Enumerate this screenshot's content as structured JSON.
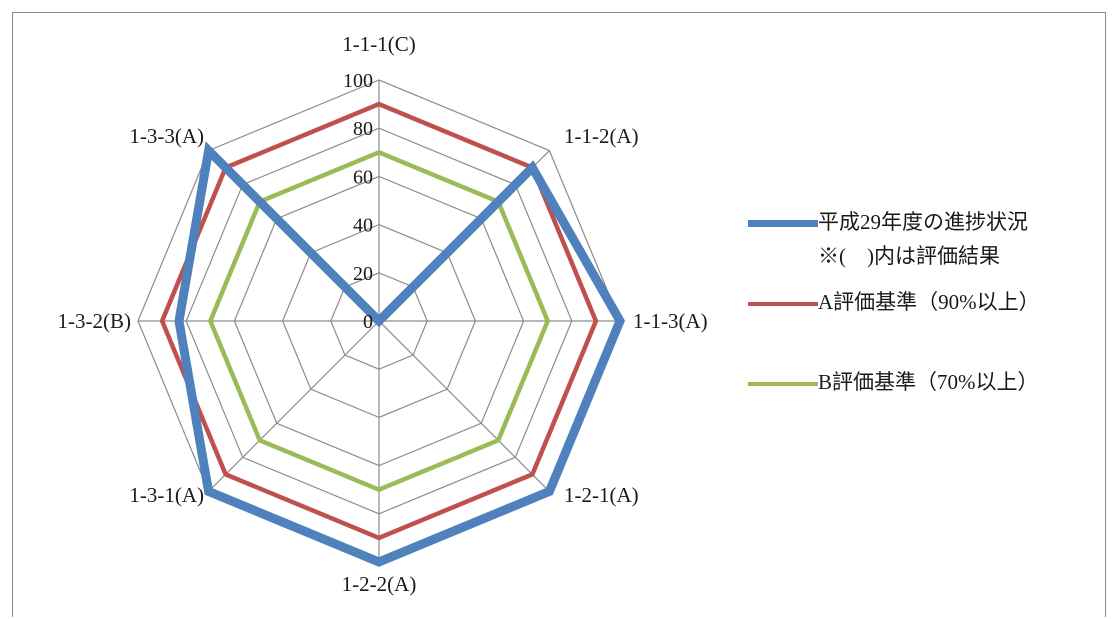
{
  "chart_data": {
    "type": "radar",
    "title": "",
    "categories": [
      "1-1-1(C)",
      "1-1-2(A)",
      "1-1-3(A)",
      "1-2-1(A)",
      "1-2-2(A)",
      "1-3-1(A)",
      "1-3-2(B)",
      "1-3-3(A)"
    ],
    "r_ticks": [
      "0",
      "20",
      "40",
      "60",
      "80",
      "100"
    ],
    "rlim": [
      0,
      100
    ],
    "grid": true,
    "legend_position": "right",
    "series": [
      {
        "name": "平成29年度の進捗状況",
        "name_line2": "※(　)内は評価結果",
        "color": "#4f81bd",
        "values": [
          0,
          90,
          100,
          100,
          100,
          100,
          83,
          100
        ]
      },
      {
        "name": "A評価基準（90%以上）",
        "color": "#c0504d",
        "values": [
          90,
          90,
          90,
          90,
          90,
          90,
          90,
          90
        ]
      },
      {
        "name": "B評価基準（70%以上）",
        "color": "#9bbb59",
        "values": [
          70,
          70,
          70,
          70,
          70,
          70,
          70,
          70
        ]
      }
    ]
  }
}
